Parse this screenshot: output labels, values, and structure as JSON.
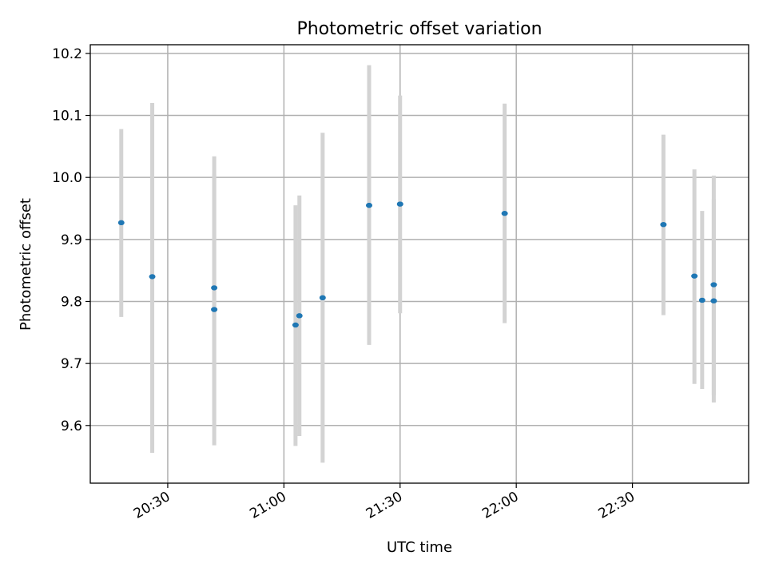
{
  "chart_data": {
    "type": "scatter",
    "title": "Photometric offset variation",
    "xlabel": "UTC time",
    "ylabel": "Photometric offset",
    "grid": true,
    "x_tick_labels": [
      "20:30",
      "21:00",
      "21:30",
      "22:00",
      "22:30"
    ],
    "x_ticks": [
      "20:30",
      "21:00",
      "21:30",
      "22:00",
      "22:30"
    ],
    "xlim": [
      "20:10",
      "23:00"
    ],
    "y_ticks": [
      9.6,
      9.7,
      9.8,
      9.9,
      10.0,
      10.1,
      10.2
    ],
    "y_tick_labels": [
      "9.6",
      "9.7",
      "9.8",
      "9.9",
      "10.0",
      "10.1",
      "10.2"
    ],
    "ylim": [
      9.507,
      10.214
    ],
    "colors": {
      "marker": "#1f77b4",
      "errorbar": "#d3d3d3"
    },
    "points": [
      {
        "x": "20:18",
        "y": 9.927,
        "low": 9.775,
        "high": 10.078
      },
      {
        "x": "20:26",
        "y": 9.84,
        "low": 9.556,
        "high": 10.12
      },
      {
        "x": "20:42",
        "y": 9.822,
        "low": 9.608,
        "high": 10.034
      },
      {
        "x": "20:42",
        "y": 9.787,
        "low": 9.568,
        "high": 10.005
      },
      {
        "x": "21:03",
        "y": 9.762,
        "low": 9.567,
        "high": 9.955
      },
      {
        "x": "21:04",
        "y": 9.777,
        "low": 9.583,
        "high": 9.971
      },
      {
        "x": "21:10",
        "y": 9.806,
        "low": 9.54,
        "high": 10.072
      },
      {
        "x": "21:22",
        "y": 9.955,
        "low": 9.73,
        "high": 10.181
      },
      {
        "x": "21:30",
        "y": 9.957,
        "low": 9.781,
        "high": 10.132
      },
      {
        "x": "21:57",
        "y": 9.942,
        "low": 9.765,
        "high": 10.119
      },
      {
        "x": "22:38",
        "y": 9.924,
        "low": 9.778,
        "high": 10.069
      },
      {
        "x": "22:46",
        "y": 9.841,
        "low": 9.667,
        "high": 10.013
      },
      {
        "x": "22:48",
        "y": 9.802,
        "low": 9.659,
        "high": 9.946
      },
      {
        "x": "22:51",
        "y": 9.801,
        "low": 9.637,
        "high": 9.965
      },
      {
        "x": "22:51",
        "y": 9.827,
        "low": 9.649,
        "high": 10.003
      }
    ]
  }
}
